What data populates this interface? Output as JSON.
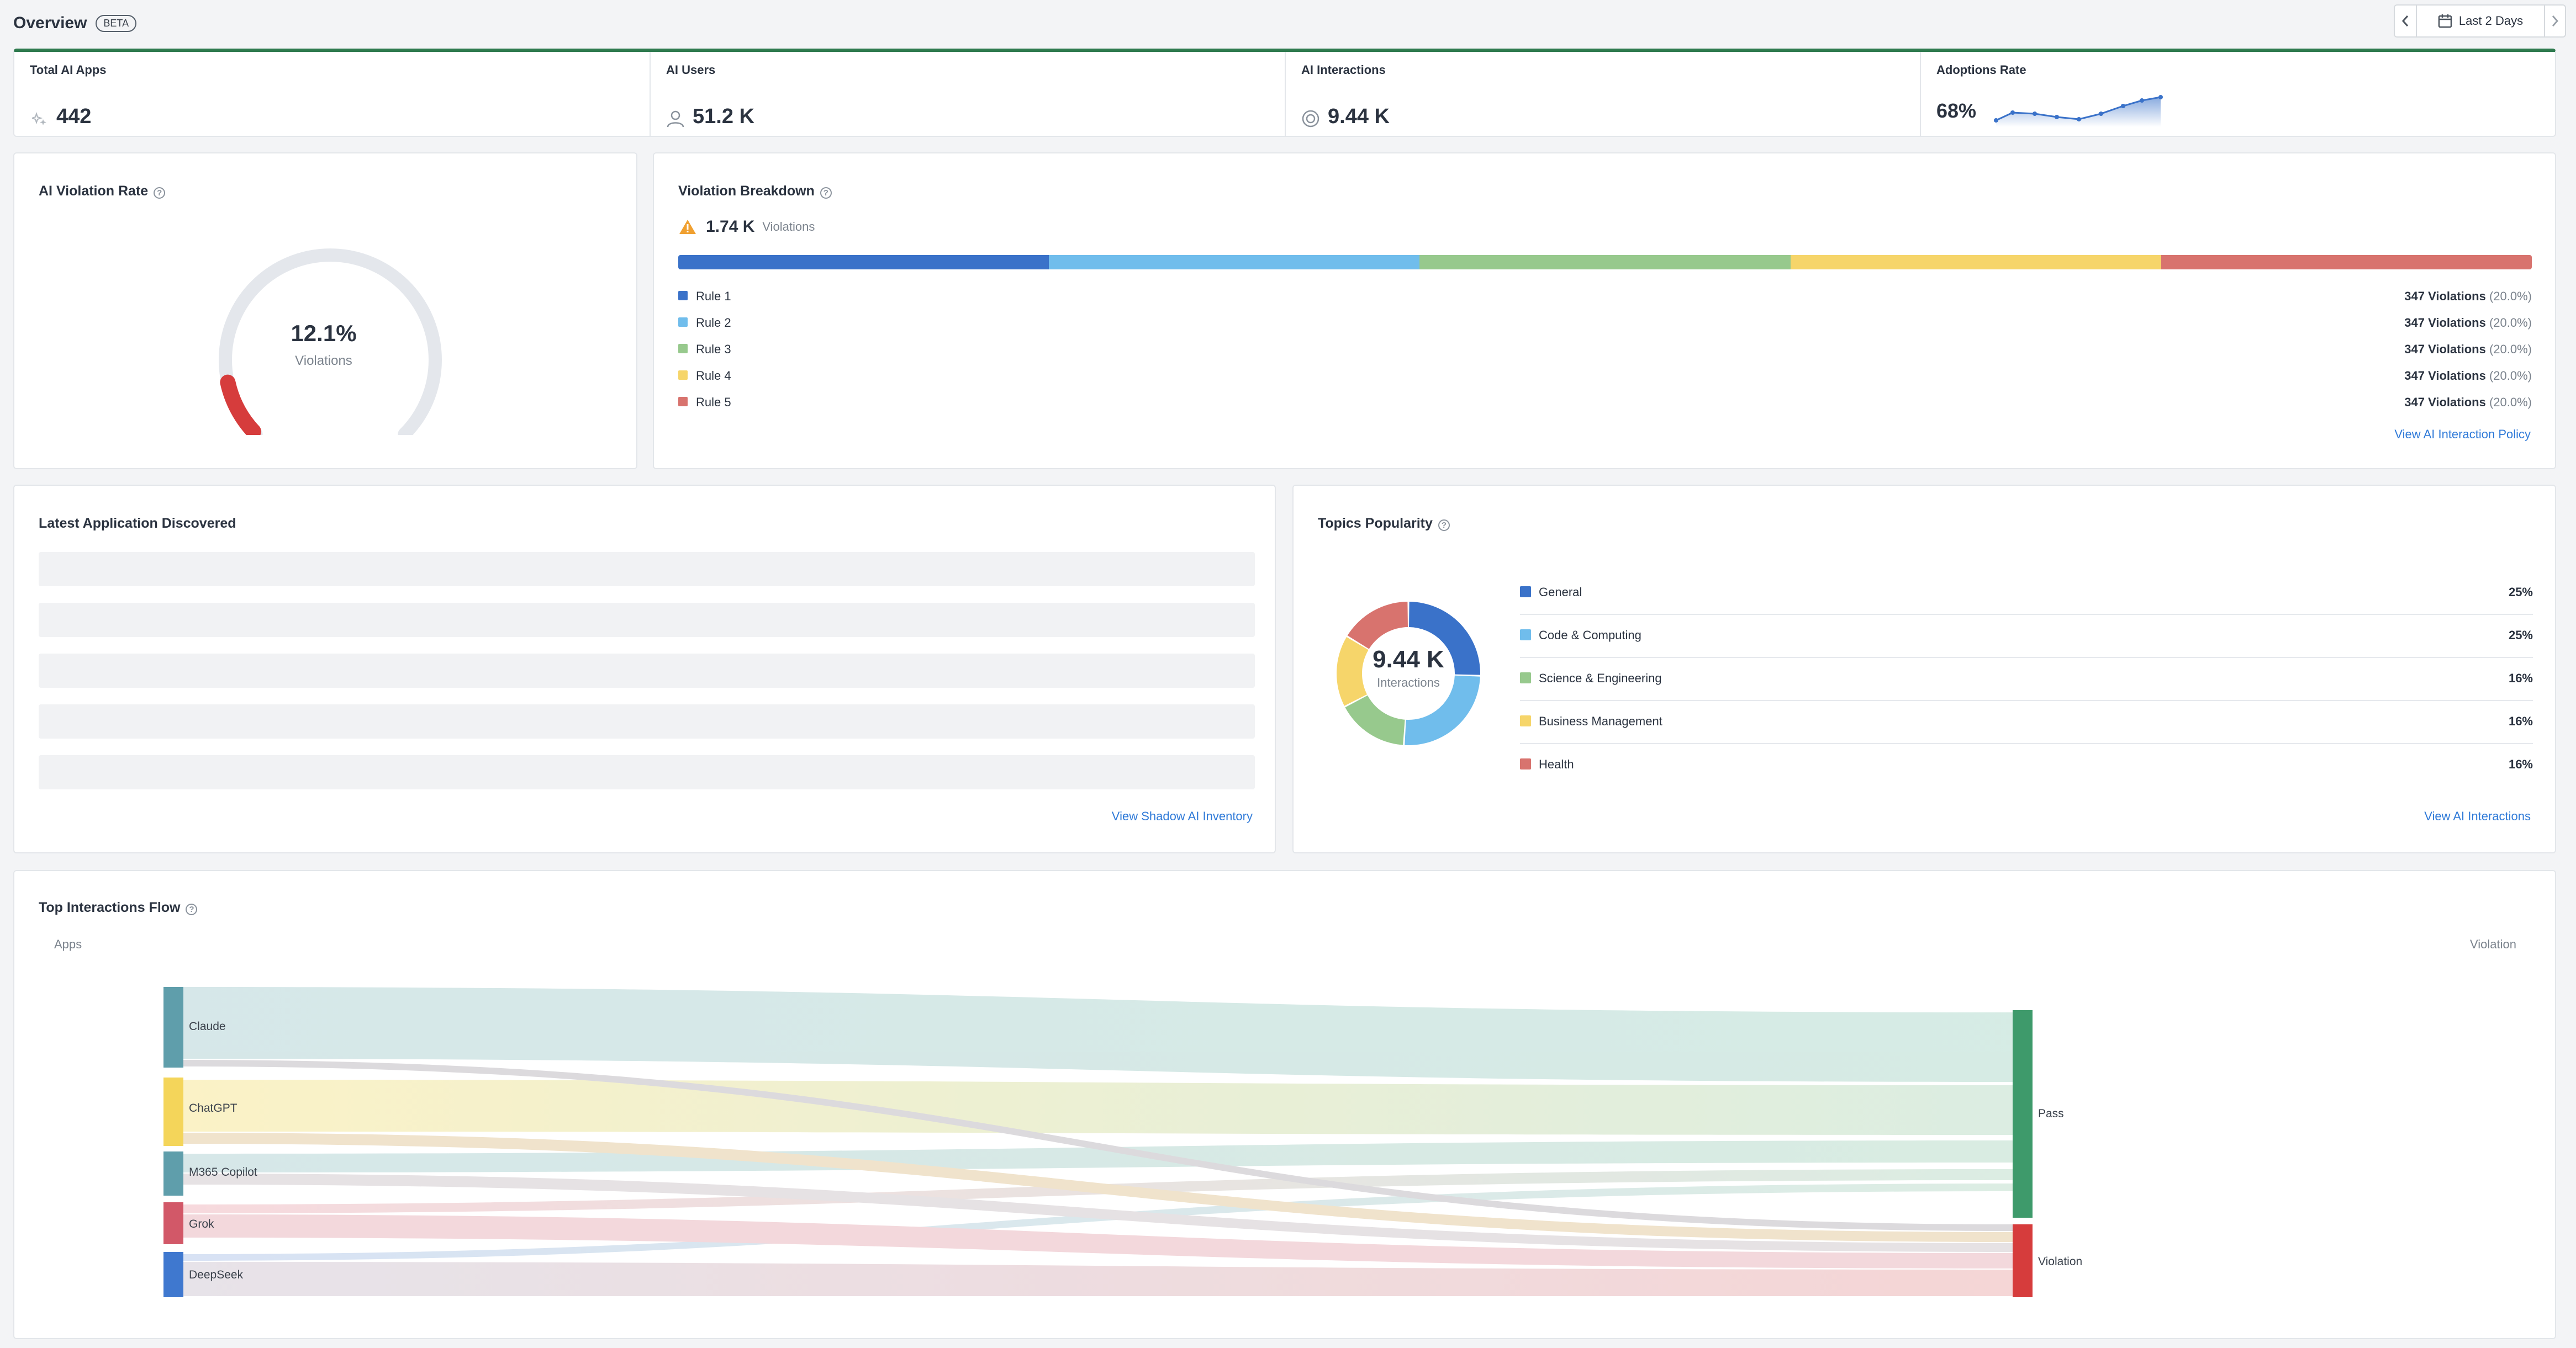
{
  "header": {
    "title": "Overview",
    "badge": "BETA",
    "date_range": "Last 2 Days"
  },
  "stats": [
    {
      "label": "Total AI Apps",
      "value": "442",
      "icon": "sparkle-icon"
    },
    {
      "label": "AI Users",
      "value": "51.2 K",
      "icon": "user-icon"
    },
    {
      "label": "AI Interactions",
      "value": "9.44 K",
      "icon": "target-icon"
    },
    {
      "label": "Adoptions Rate",
      "value": "68%",
      "icon": "sparkline"
    }
  ],
  "violation_rate": {
    "title": "AI Violation Rate",
    "value": "12.1%",
    "caption": "Violations",
    "fraction": 0.121
  },
  "violation_breakdown": {
    "title": "Violation Breakdown",
    "total": "1.74 K",
    "total_caption": "Violations",
    "rules": [
      {
        "name": "Rule 1",
        "count": "347 Violations",
        "pct": "(20.0%)",
        "share": 0.2,
        "color": "#3a72c9"
      },
      {
        "name": "Rule 2",
        "count": "347 Violations",
        "pct": "(20.0%)",
        "share": 0.2,
        "color": "#70bdec"
      },
      {
        "name": "Rule 3",
        "count": "347 Violations",
        "pct": "(20.0%)",
        "share": 0.2,
        "color": "#97c98d"
      },
      {
        "name": "Rule 4",
        "count": "347 Violations",
        "pct": "(20.0%)",
        "share": 0.2,
        "color": "#f6d56a"
      },
      {
        "name": "Rule 5",
        "count": "347 Violations",
        "pct": "(20.0%)",
        "share": 0.2,
        "color": "#d8736e"
      }
    ],
    "link": "View AI Interaction Policy"
  },
  "latest_apps": {
    "title": "Latest Application Discovered",
    "link": "View Shadow AI Inventory"
  },
  "topics": {
    "title": "Topics Popularity",
    "center_value": "9.44 K",
    "center_caption": "Interactions",
    "items": [
      {
        "name": "General",
        "pct": "25%",
        "share": 25,
        "color": "#3a72c9"
      },
      {
        "name": "Code & Computing",
        "pct": "25%",
        "share": 25,
        "color": "#70bdec"
      },
      {
        "name": "Science & Engineering",
        "pct": "16%",
        "share": 16,
        "color": "#97c98d"
      },
      {
        "name": "Business Management",
        "pct": "16%",
        "share": 16,
        "color": "#f6d56a"
      },
      {
        "name": "Health",
        "pct": "16%",
        "share": 16,
        "color": "#d8736e"
      }
    ],
    "link": "View AI Interactions"
  },
  "flow": {
    "title": "Top Interactions Flow",
    "left_header": "Apps",
    "right_header": "Violation",
    "apps": [
      {
        "name": "Claude",
        "color": "#5f9eab"
      },
      {
        "name": "ChatGPT",
        "color": "#f4d55a"
      },
      {
        "name": "M365 Copilot",
        "color": "#5f9eab"
      },
      {
        "name": "Grok",
        "color": "#d25868"
      },
      {
        "name": "DeepSeek",
        "color": "#3f78cf"
      }
    ],
    "targets": [
      {
        "name": "Pass",
        "color": "#3e9a6b"
      },
      {
        "name": "Violation",
        "color": "#d63c3c"
      }
    ]
  }
}
